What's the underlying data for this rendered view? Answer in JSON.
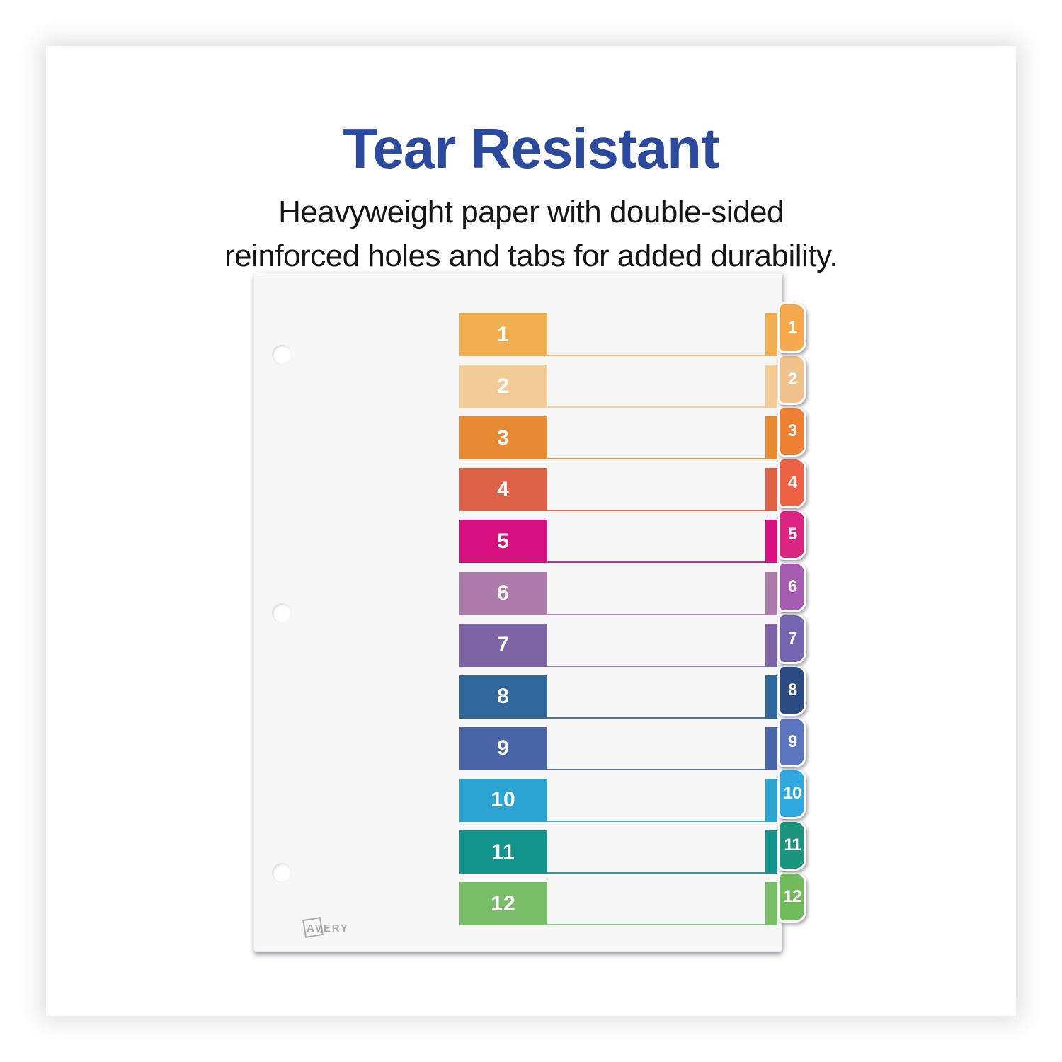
{
  "headline": {
    "text": "Tear Resistant",
    "color": "#2B4A9E"
  },
  "subheadline": {
    "line1": "Heavyweight paper with double-sided",
    "line2": "reinforced holes and tabs for added durability."
  },
  "sheet": {
    "brand_logo": "AVERY",
    "hole_count": 3,
    "rows": [
      {
        "label": "1",
        "band_color": "#EFAF52",
        "tab_color": "#F5A84C"
      },
      {
        "label": "2",
        "band_color": "#F3CB96",
        "tab_color": "#F2C28C"
      },
      {
        "label": "3",
        "band_color": "#E78A33",
        "tab_color": "#EF7F33"
      },
      {
        "label": "4",
        "band_color": "#DC6147",
        "tab_color": "#ED6144"
      },
      {
        "label": "5",
        "band_color": "#D5107E",
        "tab_color": "#DA2580"
      },
      {
        "label": "6",
        "band_color": "#AC7BAC",
        "tab_color": "#A55CB0"
      },
      {
        "label": "7",
        "band_color": "#7D64A5",
        "tab_color": "#7566B2"
      },
      {
        "label": "8",
        "band_color": "#31689B",
        "tab_color": "#2B4A82"
      },
      {
        "label": "9",
        "band_color": "#4A64A8",
        "tab_color": "#5B74BE"
      },
      {
        "label": "10",
        "band_color": "#2BA3D3",
        "tab_color": "#2FA9DE"
      },
      {
        "label": "11",
        "band_color": "#12948D",
        "tab_color": "#1B947E"
      },
      {
        "label": "12",
        "band_color": "#7BBE69",
        "tab_color": "#70BC5C"
      }
    ]
  }
}
